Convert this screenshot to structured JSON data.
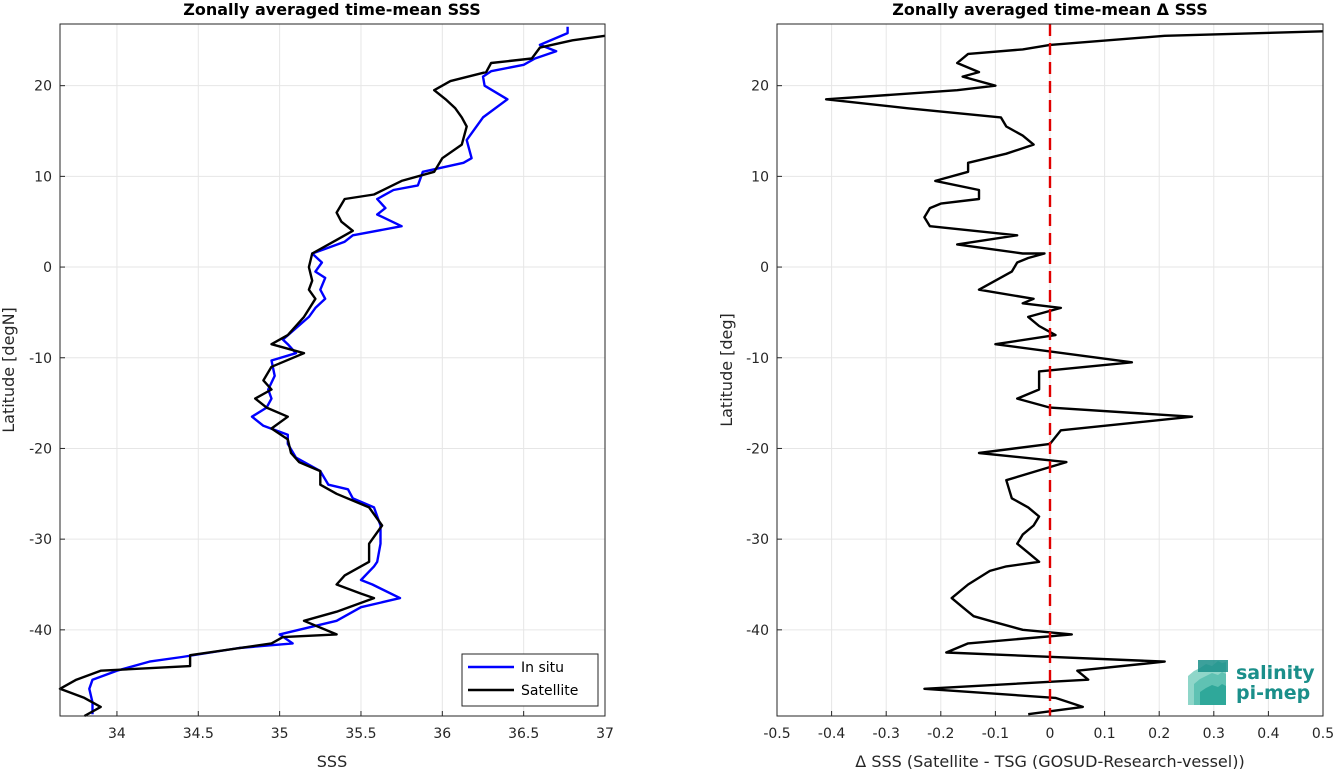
{
  "chart_data": [
    {
      "type": "line",
      "title": "Zonally averaged time-mean SSS",
      "xlabel": "SSS",
      "ylabel": "Latitude [degN]",
      "xlim": [
        33.65,
        37.0
      ],
      "ylim": [
        -49.5,
        26.8
      ],
      "xticks": [
        "34",
        "34.5",
        "35",
        "35.5",
        "36",
        "36.5",
        "37"
      ],
      "yticks": [
        "-40",
        "-30",
        "-20",
        "-10",
        "0",
        "10",
        "20"
      ],
      "xtick_values": [
        34,
        34.5,
        35,
        35.5,
        36,
        36.5,
        37
      ],
      "ytick_values": [
        -40,
        -30,
        -20,
        -10,
        0,
        10,
        20
      ],
      "grid": true,
      "legend": "bottom-right",
      "series": [
        {
          "name": "In situ",
          "color": "#0000ff",
          "points": [
            [
              36.77,
              26.5
            ],
            [
              36.77,
              25.8
            ],
            [
              36.6,
              24.5
            ],
            [
              36.7,
              23.8
            ],
            [
              36.57,
              23.0
            ],
            [
              36.5,
              22.3
            ],
            [
              36.3,
              21.6
            ],
            [
              36.25,
              21.0
            ],
            [
              36.26,
              20.0
            ],
            [
              36.4,
              18.5
            ],
            [
              36.25,
              16.5
            ],
            [
              36.15,
              14.0
            ],
            [
              36.18,
              12.0
            ],
            [
              36.13,
              11.5
            ],
            [
              35.88,
              10.5
            ],
            [
              35.85,
              9.0
            ],
            [
              35.7,
              8.5
            ],
            [
              35.6,
              7.5
            ],
            [
              35.65,
              6.5
            ],
            [
              35.6,
              5.8
            ],
            [
              35.75,
              4.5
            ],
            [
              35.45,
              3.5
            ],
            [
              35.4,
              2.8
            ],
            [
              35.28,
              2.0
            ],
            [
              35.2,
              1.5
            ],
            [
              35.26,
              0.5
            ],
            [
              35.22,
              -0.5
            ],
            [
              35.28,
              -1.2
            ],
            [
              35.25,
              -2.5
            ],
            [
              35.28,
              -3.5
            ],
            [
              35.22,
              -4.5
            ],
            [
              35.18,
              -5.5
            ],
            [
              35.02,
              -8.0
            ],
            [
              35.05,
              -8.5
            ],
            [
              35.1,
              -9.5
            ],
            [
              34.95,
              -10.3
            ],
            [
              34.97,
              -12.0
            ],
            [
              34.93,
              -13.5
            ],
            [
              34.95,
              -14.5
            ],
            [
              34.92,
              -15.5
            ],
            [
              34.83,
              -16.5
            ],
            [
              34.9,
              -17.5
            ],
            [
              35.05,
              -18.5
            ],
            [
              35.05,
              -19.5
            ],
            [
              35.1,
              -21.0
            ],
            [
              35.25,
              -22.5
            ],
            [
              35.3,
              -24.0
            ],
            [
              35.42,
              -24.5
            ],
            [
              35.45,
              -25.5
            ],
            [
              35.58,
              -26.5
            ],
            [
              35.62,
              -28.5
            ],
            [
              35.62,
              -30.5
            ],
            [
              35.6,
              -32.5
            ],
            [
              35.58,
              -33.0
            ],
            [
              35.5,
              -34.5
            ],
            [
              35.57,
              -35.0
            ],
            [
              35.74,
              -36.5
            ],
            [
              35.5,
              -37.5
            ],
            [
              35.35,
              -39.0
            ],
            [
              35.0,
              -40.5
            ],
            [
              35.08,
              -41.5
            ],
            [
              34.75,
              -42.0
            ],
            [
              34.4,
              -43.0
            ],
            [
              34.2,
              -43.5
            ],
            [
              34.0,
              -44.5
            ],
            [
              33.85,
              -45.5
            ],
            [
              33.83,
              -46.5
            ],
            [
              33.85,
              -48.0
            ],
            [
              33.85,
              -49.3
            ]
          ]
        },
        {
          "name": "Satellite",
          "color": "#000000",
          "points": [
            [
              37.0,
              25.5
            ],
            [
              36.8,
              25.0
            ],
            [
              36.6,
              24.2
            ],
            [
              36.55,
              23.0
            ],
            [
              36.3,
              22.5
            ],
            [
              36.27,
              21.5
            ],
            [
              36.05,
              20.5
            ],
            [
              35.95,
              19.5
            ],
            [
              36.02,
              18.5
            ],
            [
              36.08,
              17.5
            ],
            [
              36.12,
              16.5
            ],
            [
              36.15,
              15.5
            ],
            [
              36.12,
              13.5
            ],
            [
              36.0,
              12.0
            ],
            [
              35.95,
              10.5
            ],
            [
              35.75,
              9.5
            ],
            [
              35.58,
              8.0
            ],
            [
              35.4,
              7.5
            ],
            [
              35.35,
              6.0
            ],
            [
              35.38,
              5.0
            ],
            [
              35.45,
              4.0
            ],
            [
              35.35,
              3.0
            ],
            [
              35.2,
              1.5
            ],
            [
              35.18,
              0.0
            ],
            [
              35.2,
              -1.5
            ],
            [
              35.18,
              -2.5
            ],
            [
              35.22,
              -3.5
            ],
            [
              35.15,
              -5.5
            ],
            [
              35.05,
              -7.5
            ],
            [
              34.95,
              -8.5
            ],
            [
              35.15,
              -9.5
            ],
            [
              34.95,
              -11.0
            ],
            [
              34.9,
              -12.5
            ],
            [
              34.95,
              -13.5
            ],
            [
              34.85,
              -14.5
            ],
            [
              34.92,
              -15.5
            ],
            [
              35.05,
              -16.5
            ],
            [
              34.95,
              -17.8
            ],
            [
              35.05,
              -19.0
            ],
            [
              35.07,
              -20.5
            ],
            [
              35.12,
              -21.5
            ],
            [
              35.25,
              -22.5
            ],
            [
              35.25,
              -24.0
            ],
            [
              35.35,
              -25.0
            ],
            [
              35.55,
              -26.5
            ],
            [
              35.63,
              -28.5
            ],
            [
              35.55,
              -30.5
            ],
            [
              35.55,
              -32.5
            ],
            [
              35.4,
              -34.0
            ],
            [
              35.35,
              -35.0
            ],
            [
              35.5,
              -36.0
            ],
            [
              35.58,
              -36.5
            ],
            [
              35.35,
              -38.0
            ],
            [
              35.15,
              -39.0
            ],
            [
              35.35,
              -40.5
            ],
            [
              35.02,
              -40.8
            ],
            [
              34.95,
              -41.5
            ],
            [
              34.45,
              -42.8
            ],
            [
              34.45,
              -44.0
            ],
            [
              33.9,
              -44.5
            ],
            [
              33.75,
              -45.5
            ],
            [
              33.65,
              -46.5
            ],
            [
              33.8,
              -47.5
            ],
            [
              33.9,
              -48.5
            ],
            [
              33.8,
              -49.5
            ]
          ]
        }
      ]
    },
    {
      "type": "line",
      "title": "Zonally averaged time-mean Δ SSS",
      "xlabel": "Δ SSS (Satellite - TSG (GOSUD-Research-vessel))",
      "ylabel": "Latitude [deg]",
      "xlim": [
        -0.5,
        0.5
      ],
      "ylim": [
        -49.5,
        26.8
      ],
      "xticks": [
        "-0.5",
        "-0.4",
        "-0.3",
        "-0.2",
        "-0.1",
        "0",
        "0.1",
        "0.2",
        "0.3",
        "0.4",
        "0.5"
      ],
      "yticks": [
        "-40",
        "-30",
        "-20",
        "-10",
        "0",
        "10",
        "20"
      ],
      "xtick_values": [
        -0.5,
        -0.4,
        -0.3,
        -0.2,
        -0.1,
        0,
        0.1,
        0.2,
        0.3,
        0.4,
        0.5
      ],
      "ytick_values": [
        -40,
        -30,
        -20,
        -10,
        0,
        10,
        20
      ],
      "grid": true,
      "reference_line": {
        "x": 0,
        "color": "#e00000",
        "style": "dashed"
      },
      "series": [
        {
          "color": "#000000",
          "points": [
            [
              0.5,
              26.0
            ],
            [
              0.21,
              25.5
            ],
            [
              0.0,
              24.5
            ],
            [
              -0.05,
              24.0
            ],
            [
              -0.15,
              23.5
            ],
            [
              -0.17,
              22.5
            ],
            [
              -0.13,
              21.5
            ],
            [
              -0.16,
              21.0
            ],
            [
              -0.1,
              20.0
            ],
            [
              -0.17,
              19.5
            ],
            [
              -0.41,
              18.5
            ],
            [
              -0.26,
              17.5
            ],
            [
              -0.09,
              16.5
            ],
            [
              -0.08,
              15.5
            ],
            [
              -0.05,
              14.5
            ],
            [
              -0.03,
              13.5
            ],
            [
              -0.08,
              12.5
            ],
            [
              -0.15,
              11.5
            ],
            [
              -0.15,
              10.5
            ],
            [
              -0.21,
              9.5
            ],
            [
              -0.13,
              8.5
            ],
            [
              -0.13,
              7.5
            ],
            [
              -0.2,
              7.0
            ],
            [
              -0.22,
              6.5
            ],
            [
              -0.23,
              5.5
            ],
            [
              -0.22,
              4.5
            ],
            [
              -0.06,
              3.5
            ],
            [
              -0.17,
              2.5
            ],
            [
              -0.05,
              1.5
            ],
            [
              -0.01,
              1.5
            ],
            [
              -0.04,
              1.0
            ],
            [
              -0.06,
              0.5
            ],
            [
              -0.07,
              -0.5
            ],
            [
              -0.13,
              -2.5
            ],
            [
              -0.03,
              -3.5
            ],
            [
              -0.05,
              -4.0
            ],
            [
              0.02,
              -4.5
            ],
            [
              -0.04,
              -5.5
            ],
            [
              -0.02,
              -6.5
            ],
            [
              0.01,
              -7.5
            ],
            [
              -0.1,
              -8.5
            ],
            [
              0.15,
              -10.5
            ],
            [
              -0.02,
              -11.5
            ],
            [
              -0.02,
              -13.5
            ],
            [
              -0.06,
              -14.5
            ],
            [
              0.0,
              -15.5
            ],
            [
              0.26,
              -16.5
            ],
            [
              0.02,
              -18.0
            ],
            [
              0.0,
              -19.5
            ],
            [
              -0.13,
              -20.5
            ],
            [
              0.03,
              -21.5
            ],
            [
              -0.08,
              -23.5
            ],
            [
              -0.07,
              -25.5
            ],
            [
              -0.04,
              -26.5
            ],
            [
              -0.02,
              -27.5
            ],
            [
              -0.03,
              -28.5
            ],
            [
              -0.05,
              -29.5
            ],
            [
              -0.06,
              -30.5
            ],
            [
              -0.05,
              -31.0
            ],
            [
              -0.04,
              -31.5
            ],
            [
              -0.02,
              -32.5
            ],
            [
              -0.08,
              -33.0
            ],
            [
              -0.11,
              -33.5
            ],
            [
              -0.15,
              -35.0
            ],
            [
              -0.18,
              -36.5
            ],
            [
              -0.16,
              -37.5
            ],
            [
              -0.14,
              -38.5
            ],
            [
              -0.11,
              -39.0
            ],
            [
              -0.05,
              -40.0
            ],
            [
              0.04,
              -40.5
            ],
            [
              -0.15,
              -41.5
            ],
            [
              -0.19,
              -42.5
            ],
            [
              0.21,
              -43.5
            ],
            [
              0.05,
              -44.5
            ],
            [
              0.06,
              -45.0
            ],
            [
              0.07,
              -45.5
            ],
            [
              -0.23,
              -46.5
            ],
            [
              0.01,
              -47.5
            ],
            [
              0.06,
              -48.5
            ],
            [
              -0.04,
              -49.3
            ]
          ]
        }
      ]
    }
  ],
  "logo": {
    "line1": "salinity",
    "line2": "pi-mep",
    "color": "#1a8f8a"
  }
}
